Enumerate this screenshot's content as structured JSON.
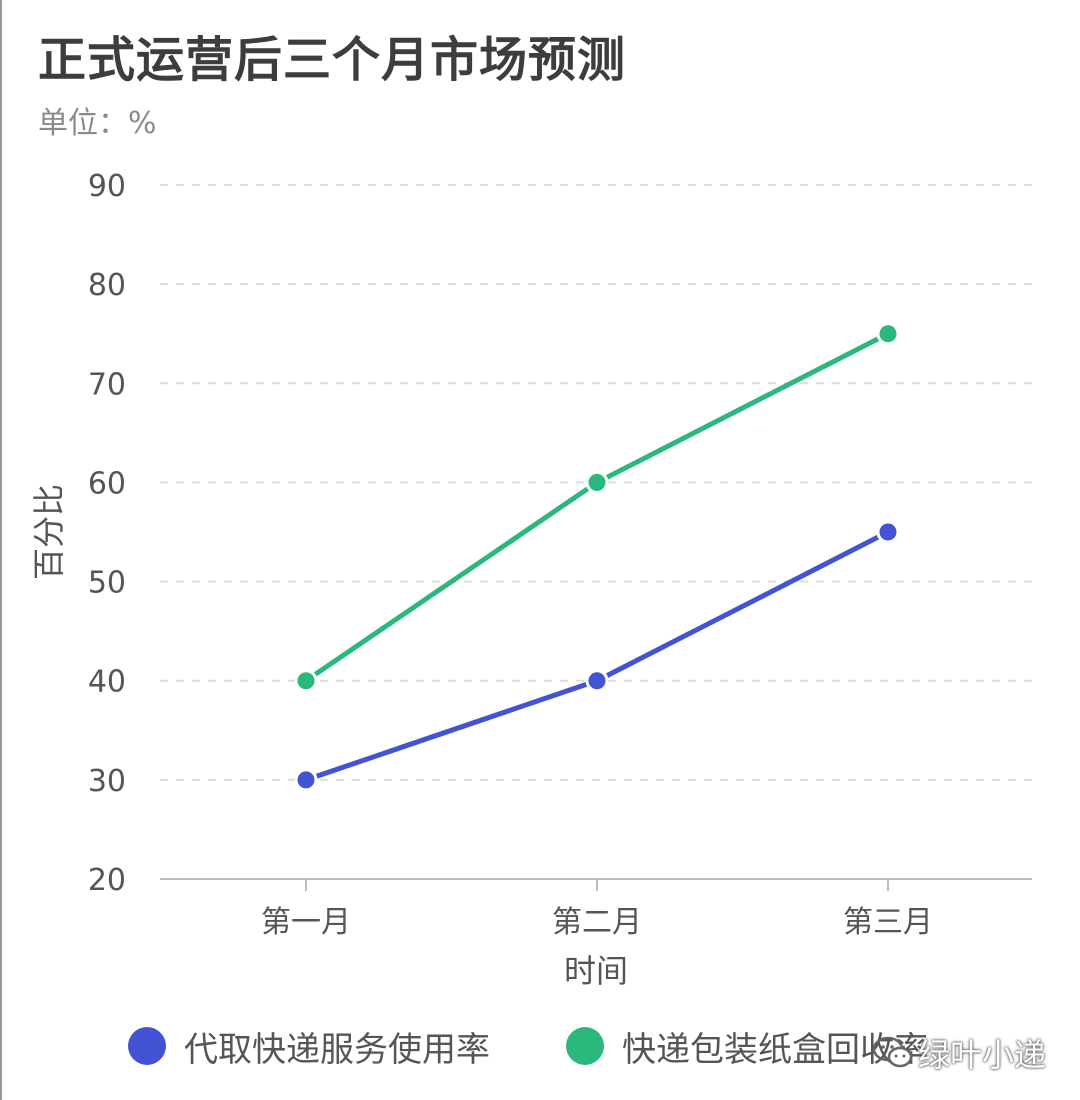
{
  "title": "正式运营后三个月市场预测",
  "subtitle": "单位：%",
  "watermark": "绿叶小递",
  "chart_data": {
    "type": "line",
    "categories": [
      "第一月",
      "第二月",
      "第三月"
    ],
    "xlabel": "时间",
    "ylabel": "百分比",
    "ylim": [
      20,
      90
    ],
    "yticks": [
      20,
      30,
      40,
      50,
      60,
      70,
      80,
      90
    ],
    "grid": true,
    "legend": "bottom",
    "series": [
      {
        "name": "代取快递服务使用率",
        "values": [
          30,
          40,
          55
        ],
        "color": "#4353d3"
      },
      {
        "name": "快递包装纸盒回收率",
        "values": [
          40,
          60,
          75
        ],
        "color": "#2ab87d"
      }
    ]
  }
}
